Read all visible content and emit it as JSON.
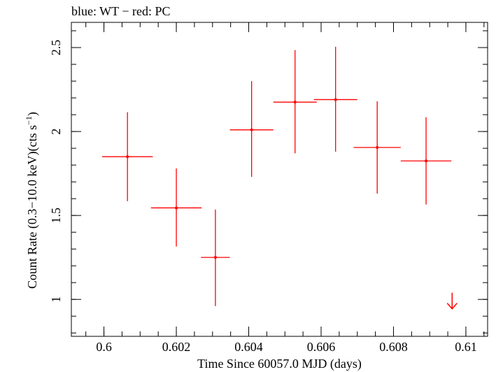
{
  "chart_data": {
    "type": "scatter",
    "title": "blue: WT − red: PC",
    "xlabel": "Time Since 60057.0 MJD (days)",
    "ylabel_main": "Count Rate (0.3−10.0 keV)(cts s",
    "ylabel_sup": "−1",
    "ylabel_end": ")",
    "xlim": [
      0.5991,
      0.6106
    ],
    "ylim": [
      0.78,
      2.65
    ],
    "x_ticks": [
      0.6,
      0.602,
      0.604,
      0.606,
      0.608,
      0.61
    ],
    "x_tick_labels": [
      "0.6",
      "0.602",
      "0.604",
      "0.606",
      "0.608",
      "0.61"
    ],
    "y_ticks": [
      1,
      1.5,
      2,
      2.5
    ],
    "y_tick_labels": [
      "1",
      "1.5",
      "2",
      "2.5"
    ],
    "x_minor_step": 0.0005,
    "y_minor_step": 0.1,
    "grid": false,
    "colors": {
      "PC": "#ff0000",
      "WT": "#0000ff",
      "axis": "#000000"
    },
    "series": [
      {
        "name": "PC",
        "points": [
          {
            "x": 0.60065,
            "xerr": 0.0007,
            "y": 1.85,
            "yerr_lo": 0.265,
            "yerr_hi": 0.265
          },
          {
            "x": 0.602,
            "xerr": 0.0007,
            "y": 1.545,
            "yerr_lo": 0.23,
            "yerr_hi": 0.235
          },
          {
            "x": 0.60308,
            "xerr": 0.0004,
            "y": 1.25,
            "yerr_lo": 0.29,
            "yerr_hi": 0.285
          },
          {
            "x": 0.60408,
            "xerr": 0.0006,
            "y": 2.01,
            "yerr_lo": 0.28,
            "yerr_hi": 0.29
          },
          {
            "x": 0.60528,
            "xerr": 0.0006,
            "y": 2.175,
            "yerr_lo": 0.305,
            "yerr_hi": 0.31
          },
          {
            "x": 0.6064,
            "xerr": 0.0006,
            "y": 2.19,
            "yerr_lo": 0.31,
            "yerr_hi": 0.315
          },
          {
            "x": 0.60755,
            "xerr": 0.00065,
            "y": 1.905,
            "yerr_lo": 0.275,
            "yerr_hi": 0.275
          },
          {
            "x": 0.6089,
            "xerr": 0.0007,
            "y": 1.825,
            "yerr_lo": 0.26,
            "yerr_hi": 0.26
          }
        ],
        "upper_limits": [
          {
            "x": 0.60962,
            "y": 1.04
          }
        ]
      }
    ]
  }
}
